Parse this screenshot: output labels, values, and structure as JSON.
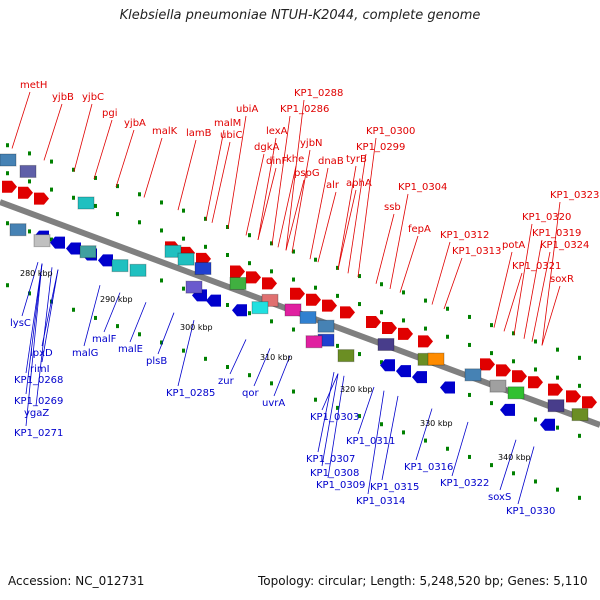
{
  "title": "Klebsiella pneumoniae NTUH-K2044, complete genome",
  "accession": "Accession: NC_012731",
  "summary": "Topology: circular; Length: 5,248,520 bp; Genes: 5,110",
  "colors": {
    "forward": "#e00000",
    "reverse": "#0000cc",
    "backbone": "#808080",
    "tick": "#008000"
  },
  "scale_labels": [
    "280 kbp",
    "290 kbp",
    "300 kbp",
    "310 kbp",
    "320 kbp",
    "330 kbp",
    "340 kbp"
  ],
  "upper_labels": [
    "metH",
    "yjbB",
    "yjbC",
    "pgi",
    "yjbA",
    "malK",
    "lamB",
    "malM",
    "ubiC",
    "ubiA",
    "KP1_0286",
    "KP1_0288",
    "lexA",
    "dgkA",
    "dinF",
    "yjbN",
    "khe",
    "pspG",
    "dnaB",
    "alr",
    "tyrB",
    "aphA",
    "KP1_0300",
    "KP1_0299",
    "ssb",
    "KP1_0304",
    "fepA",
    "KP1_0312",
    "KP1_0313",
    "potA",
    "KP1_0319",
    "KP1_0320",
    "KP1_0321",
    "KP1_0323",
    "KP1_0324",
    "soxR"
  ],
  "lower_labels": [
    "lysC",
    "lpxD",
    "rimI",
    "KP1_0268",
    "KP1_0269",
    "ygaZ",
    "KP1_0271",
    "malG",
    "malF",
    "malE",
    "plsB",
    "KP1_0285",
    "zur",
    "qor",
    "uvrA",
    "KP1_0303",
    "KP1_0311",
    "KP1_0307",
    "KP1_0308",
    "KP1_0309",
    "KP1_0315",
    "KP1_0314",
    "KP1_0316",
    "KP1_0322",
    "soxS",
    "KP1_0330"
  ]
}
